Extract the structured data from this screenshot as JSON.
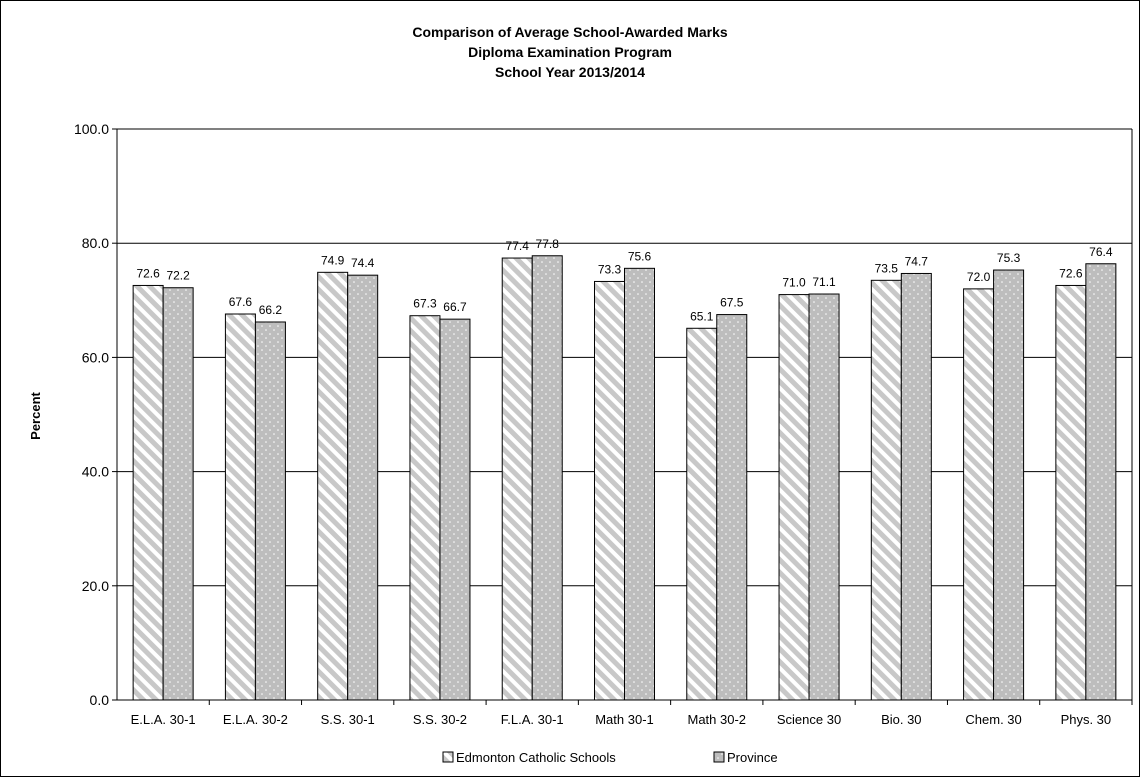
{
  "chart_data": {
    "type": "bar",
    "title_lines": [
      "Comparison of Average School-Awarded Marks",
      "Diploma Examination Program",
      "School Year 2013/2014"
    ],
    "ylabel": "Percent",
    "xlabel": "",
    "ylim": [
      0,
      100
    ],
    "ytick_labels": [
      "0.0",
      "20.0",
      "40.0",
      "60.0",
      "80.0",
      "100.0"
    ],
    "grid": true,
    "legend_position": "bottom",
    "categories": [
      "E.L.A. 30-1",
      "E.L.A. 30-2",
      "S.S. 30-1",
      "S.S. 30-2",
      "F.L.A. 30-1",
      "Math 30-1",
      "Math 30-2",
      "Science 30",
      "Bio. 30",
      "Chem. 30",
      "Phys. 30"
    ],
    "series": [
      {
        "name": "Edmonton Catholic Schools",
        "values": [
          72.6,
          67.6,
          74.9,
          67.3,
          77.4,
          73.3,
          65.1,
          71.0,
          73.5,
          72.0,
          72.6
        ],
        "labels": [
          "72.6",
          "67.6",
          "74.9",
          "67.3",
          "77.4",
          "73.3",
          "65.1",
          "71.0",
          "73.5",
          "72.0",
          "72.6"
        ],
        "pattern": "diagonal-stripes",
        "color": "#d9d9d9"
      },
      {
        "name": "Province",
        "values": [
          72.2,
          66.2,
          74.4,
          66.7,
          77.8,
          75.6,
          67.5,
          71.1,
          74.7,
          75.3,
          76.4
        ],
        "labels": [
          "72.2",
          "66.2",
          "74.4",
          "66.7",
          "77.8",
          "75.6",
          "67.5",
          "71.1",
          "74.7",
          "75.3",
          "76.4"
        ],
        "pattern": "dots",
        "color": "#bfbfbf"
      }
    ]
  }
}
